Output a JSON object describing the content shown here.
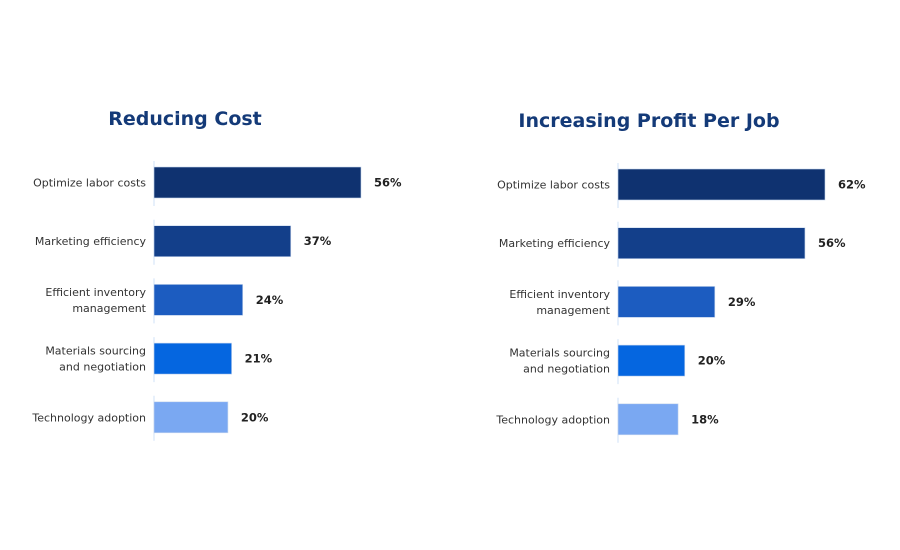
{
  "chart_data": [
    {
      "type": "bar",
      "orientation": "horizontal",
      "title": "Reducing Cost",
      "categories": [
        [
          "Optimize labor costs"
        ],
        [
          "Marketing efficiency"
        ],
        [
          "Efficient inventory",
          "management"
        ],
        [
          "Materials sourcing",
          "and negotiation"
        ],
        [
          "Technology adoption"
        ]
      ],
      "values": [
        56,
        37,
        24,
        21,
        20
      ],
      "value_labels": [
        "56%",
        "37%",
        "24%",
        "21%",
        "20%"
      ],
      "unit": "%",
      "colors": [
        "#0f3270",
        "#133f8a",
        "#1c5cc0",
        "#0566e0",
        "#7aa8f2"
      ],
      "grid": false
    },
    {
      "type": "bar",
      "orientation": "horizontal",
      "title": "Increasing Profit Per Job",
      "categories": [
        [
          "Optimize labor costs"
        ],
        [
          "Marketing efficiency"
        ],
        [
          "Efficient inventory",
          "management"
        ],
        [
          "Materials sourcing",
          "and negotiation"
        ],
        [
          "Technology adoption"
        ]
      ],
      "values": [
        62,
        56,
        29,
        20,
        18
      ],
      "value_labels": [
        "62%",
        "56%",
        "29%",
        "20%",
        "18%"
      ],
      "unit": "%",
      "colors": [
        "#0f3270",
        "#133f8a",
        "#1c5cc0",
        "#0566e0",
        "#7aa8f2"
      ],
      "grid": false
    }
  ]
}
